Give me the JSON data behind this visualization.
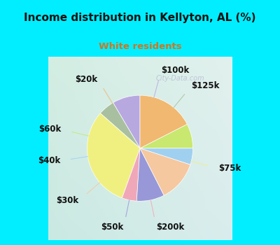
{
  "title": "Income distribution in Kellyton, AL (%)",
  "subtitle": "White residents",
  "title_color": "#111111",
  "subtitle_color": "#cc7722",
  "bg_cyan": "#00eeff",
  "bg_chart_tl": "#d0ede0",
  "bg_chart_br": "#c8eaf0",
  "labels": [
    "$100k",
    "$125k",
    "$75k",
    "$200k",
    "$50k",
    "$30k",
    "$40k",
    "$60k",
    "$20k"
  ],
  "values": [
    8.5,
    5.0,
    31.0,
    4.5,
    8.5,
    12.5,
    5.0,
    7.5,
    17.5
  ],
  "colors": [
    "#b8a8e0",
    "#a8c0a0",
    "#f0f080",
    "#f0a8b8",
    "#9898d8",
    "#f5c8a0",
    "#a0d0f0",
    "#c8e870",
    "#f0b870"
  ],
  "label_fontsize": 8.5,
  "startangle": 90,
  "watermark": "City-Data.com"
}
